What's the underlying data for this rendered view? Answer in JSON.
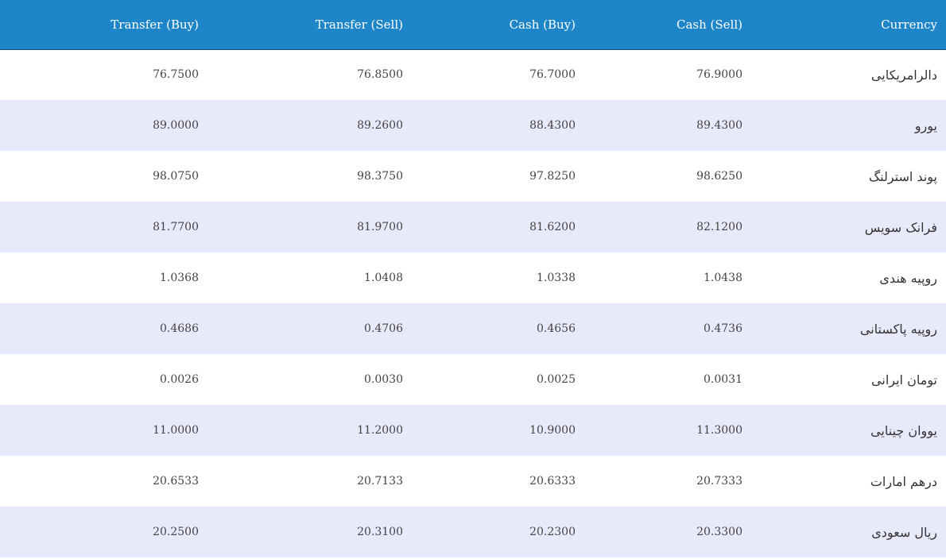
{
  "table": {
    "headers": {
      "transfer_buy": "Transfer (Buy)",
      "transfer_sell": "Transfer (Sell)",
      "cash_buy": "Cash (Buy)",
      "cash_sell": "Cash (Sell)",
      "currency": "Currency"
    },
    "rows": [
      {
        "currency": "دالرامریکایی",
        "cash_sell": "76.9000",
        "cash_buy": "76.7000",
        "transfer_sell": "76.8500",
        "transfer_buy": "76.7500"
      },
      {
        "currency": "یورو",
        "cash_sell": "89.4300",
        "cash_buy": "88.4300",
        "transfer_sell": "89.2600",
        "transfer_buy": "89.0000"
      },
      {
        "currency": "پوند استرلنگ",
        "cash_sell": "98.6250",
        "cash_buy": "97.8250",
        "transfer_sell": "98.3750",
        "transfer_buy": "98.0750"
      },
      {
        "currency": "فرانک سویس",
        "cash_sell": "82.1200",
        "cash_buy": "81.6200",
        "transfer_sell": "81.9700",
        "transfer_buy": "81.7700"
      },
      {
        "currency": "روپیه هندی",
        "cash_sell": "1.0438",
        "cash_buy": "1.0338",
        "transfer_sell": "1.0408",
        "transfer_buy": "1.0368"
      },
      {
        "currency": "روپیه پاکستانی",
        "cash_sell": "0.4736",
        "cash_buy": "0.4656",
        "transfer_sell": "0.4706",
        "transfer_buy": "0.4686"
      },
      {
        "currency": "تومان ایرانی",
        "cash_sell": "0.0031",
        "cash_buy": "0.0025",
        "transfer_sell": "0.0030",
        "transfer_buy": "0.0026"
      },
      {
        "currency": "یووان چینایی",
        "cash_sell": "11.3000",
        "cash_buy": "10.9000",
        "transfer_sell": "11.2000",
        "transfer_buy": "11.0000"
      },
      {
        "currency": "درهم امارات",
        "cash_sell": "20.7333",
        "cash_buy": "20.6333",
        "transfer_sell": "20.7133",
        "transfer_buy": "20.6533"
      },
      {
        "currency": "ریال سعودی",
        "cash_sell": "20.3300",
        "cash_buy": "20.2300",
        "transfer_sell": "20.3100",
        "transfer_buy": "20.2500"
      }
    ]
  },
  "colors": {
    "header_bg": "#1e85c8",
    "header_text": "#ffffff",
    "row_alt_bg": "#e8eafc",
    "row_bg": "#ffffff"
  }
}
